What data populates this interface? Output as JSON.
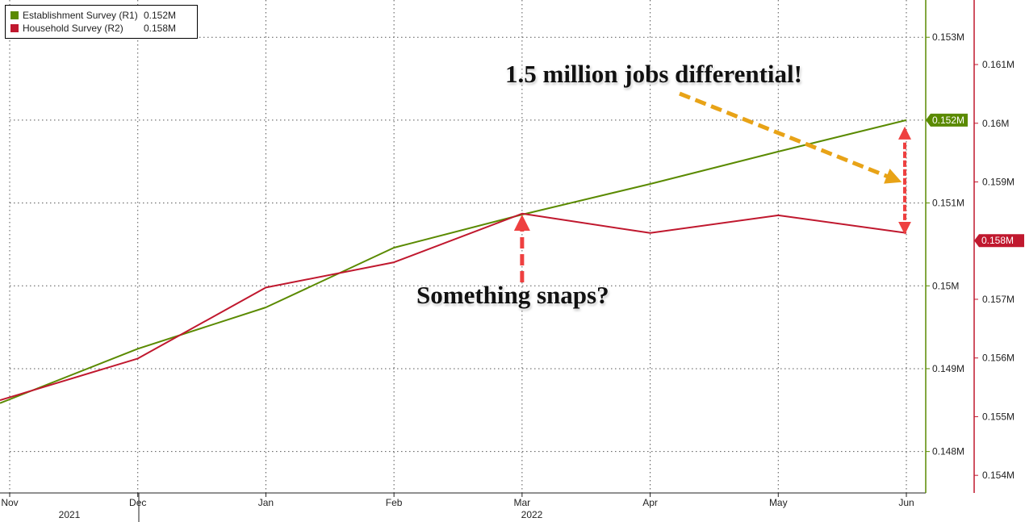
{
  "chart_data": {
    "type": "line",
    "x_ticks": [
      "Nov",
      "Dec",
      "Jan",
      "Feb",
      "Mar",
      "Apr",
      "May",
      "Jun"
    ],
    "x_year_labels": [
      "2021",
      "2022"
    ],
    "series": [
      {
        "name": "Establishment Survey (R1)",
        "legend_value": "0.152M",
        "axis": "right1",
        "color": "#5a8a00",
        "x": [
          "Nov",
          "Dec",
          "Jan",
          "Feb",
          "Mar",
          "Apr",
          "May",
          "Jun"
        ],
        "values": [
          148.63,
          149.24,
          149.74,
          150.46,
          150.86,
          151.23,
          151.62,
          152.0
        ]
      },
      {
        "name": "Household Survey (R2)",
        "legend_value": "0.158M",
        "axis": "right2",
        "color": "#c0182e",
        "x": [
          "Nov",
          "Dec",
          "Jan",
          "Feb",
          "Mar",
          "Apr",
          "May",
          "Jun"
        ],
        "values": [
          155.33,
          155.99,
          157.2,
          157.63,
          158.46,
          158.13,
          158.43,
          158.13
        ]
      }
    ],
    "right1_axis": {
      "unit_note": "thousands",
      "ylim": [
        147.5,
        153.45
      ],
      "ticks": [
        148,
        149,
        150,
        151,
        152,
        153
      ],
      "tick_labels": [
        "0.148M",
        "0.149M",
        "0.15M",
        "0.151M",
        "0.152M",
        "0.153M"
      ],
      "current_value_tag": "0.152M",
      "tag_value": 152.0,
      "color": "#5a8a00"
    },
    "right2_axis": {
      "unit_note": "thousands",
      "ylim": [
        153.7,
        162.1
      ],
      "ticks": [
        154,
        155,
        156,
        157,
        158,
        159,
        160,
        161
      ],
      "tick_labels": [
        "0.154M",
        "0.155M",
        "0.156M",
        "0.157M",
        "0.158M",
        "0.159M",
        "0.16M",
        "0.161M"
      ],
      "current_value_tag": "0.158M",
      "tag_value": 158.0,
      "color": "#c0182e"
    },
    "grid": true,
    "legend_position": "top-left",
    "annotations": [
      {
        "text": "1.5 million jobs differential!",
        "color": "#e8a317"
      },
      {
        "text": "Something snaps?",
        "color": "#ee4040"
      }
    ]
  }
}
